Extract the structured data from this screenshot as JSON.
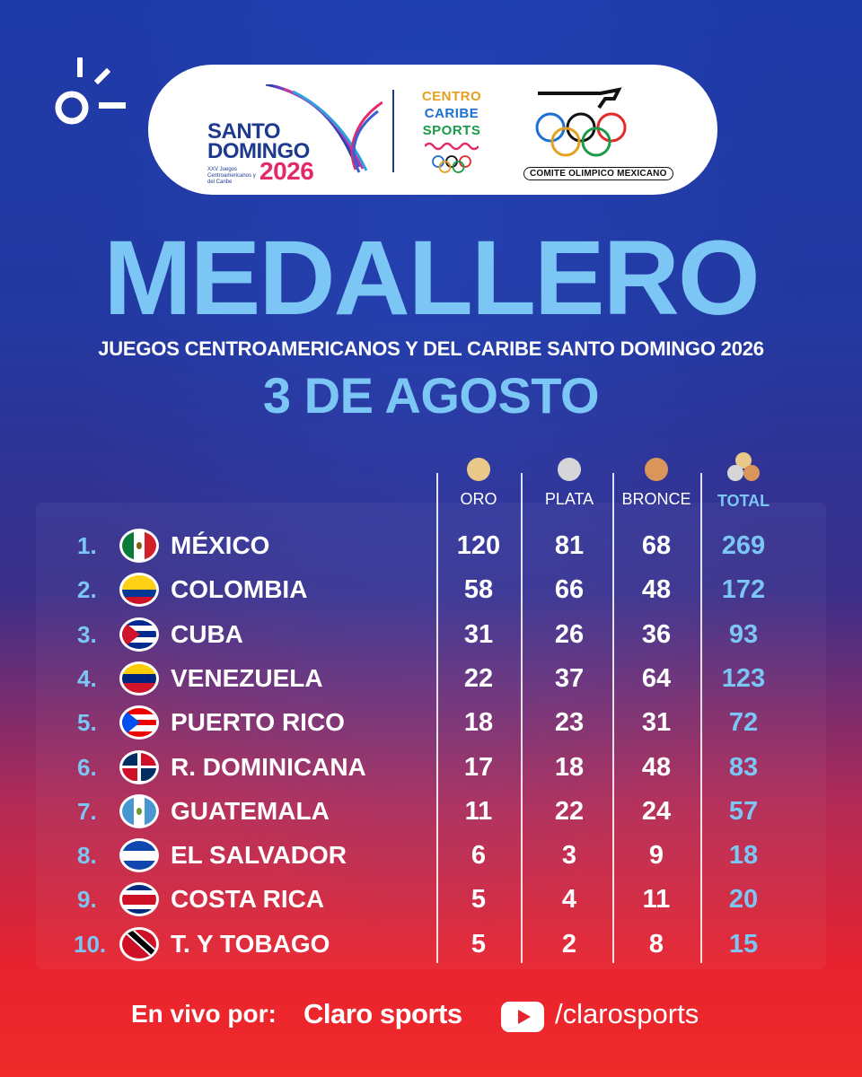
{
  "header": {
    "santo_domingo_logo": {
      "line1": "SANTO",
      "line2": "DOMINGO",
      "year": "2026",
      "sub": "XXV Juegos Centroamericanos y del Caribe"
    },
    "centro_caribe_logo": {
      "lines": [
        "CENTRO",
        "CARIBE",
        "SPORTS"
      ]
    },
    "comite_logo": {
      "text": "COMITE OLIMPICO MEXICANO"
    }
  },
  "title": "MEDALLERO",
  "subtitle": "JUEGOS CENTROAMERICANOS Y DEL CARIBE SANTO DOMINGO 2026",
  "date": "3 DE AGOSTO",
  "columns": {
    "gold": {
      "label": "ORO",
      "color": "#e8c98a"
    },
    "silver": {
      "label": "PLATA",
      "color": "#d6d6d8"
    },
    "bronze": {
      "label": "BRONCE",
      "color": "#d9955a"
    },
    "total": {
      "label": "TOTAL"
    }
  },
  "rows": [
    {
      "rank": "1.",
      "country": "MÉXICO",
      "flag": "mexico",
      "gold": "120",
      "silver": "81",
      "bronze": "68",
      "total": "269"
    },
    {
      "rank": "2.",
      "country": "COLOMBIA",
      "flag": "colombia",
      "gold": "58",
      "silver": "66",
      "bronze": "48",
      "total": "172"
    },
    {
      "rank": "3.",
      "country": "CUBA",
      "flag": "cuba",
      "gold": "31",
      "silver": "26",
      "bronze": "36",
      "total": "93"
    },
    {
      "rank": "4.",
      "country": "VENEZUELA",
      "flag": "venezuela",
      "gold": "22",
      "silver": "37",
      "bronze": "64",
      "total": "123"
    },
    {
      "rank": "5.",
      "country": "PUERTO RICO",
      "flag": "puerto-rico",
      "gold": "18",
      "silver": "23",
      "bronze": "31",
      "total": "72"
    },
    {
      "rank": "6.",
      "country": "R. DOMINICANA",
      "flag": "dominican-republic",
      "gold": "17",
      "silver": "18",
      "bronze": "48",
      "total": "83"
    },
    {
      "rank": "7.",
      "country": "GUATEMALA",
      "flag": "guatemala",
      "gold": "11",
      "silver": "22",
      "bronze": "24",
      "total": "57"
    },
    {
      "rank": "8.",
      "country": "EL SALVADOR",
      "flag": "el-salvador",
      "gold": "6",
      "silver": "3",
      "bronze": "9",
      "total": "18"
    },
    {
      "rank": "9.",
      "country": "COSTA RICA",
      "flag": "costa-rica",
      "gold": "5",
      "silver": "4",
      "bronze": "11",
      "total": "20"
    },
    {
      "rank": "10.",
      "country": "T. Y TOBAGO",
      "flag": "trinidad-and-tobago",
      "gold": "5",
      "silver": "2",
      "bronze": "8",
      "total": "15"
    }
  ],
  "footer": {
    "live_text": "En vivo por:",
    "brand": "Claro sports",
    "handle": "/clarosports"
  },
  "colors": {
    "accent": "#7cc6f5",
    "white": "#ffffff"
  }
}
